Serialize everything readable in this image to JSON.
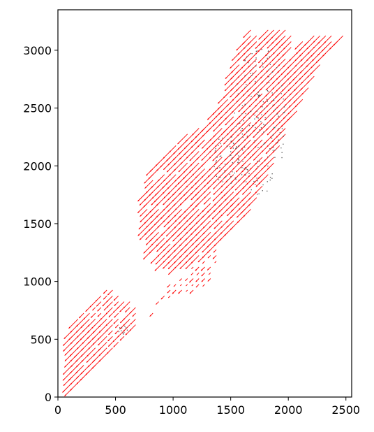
{
  "chart_data": {
    "type": "quiver",
    "title": "",
    "xlabel": "",
    "ylabel": "",
    "xlim": [
      0,
      2550
    ],
    "ylim": [
      0,
      3350
    ],
    "x_ticks": [
      0,
      500,
      1000,
      1500,
      2000,
      2500
    ],
    "y_ticks": [
      0,
      500,
      1000,
      1500,
      2000,
      2500,
      3000
    ],
    "grid": false,
    "legend": "none",
    "arrow_color": "#ff0000",
    "speck_color": "#555555",
    "arrow_direction_deg": 225,
    "region_polygons": [
      {
        "name": "lower-left-lobe",
        "points": [
          [
            100,
            40
          ],
          [
            700,
            600
          ],
          [
            700,
            800
          ],
          [
            520,
            920
          ],
          [
            400,
            940
          ],
          [
            200,
            740
          ],
          [
            100,
            560
          ]
        ]
      },
      {
        "name": "middle-band",
        "points": [
          [
            700,
            560
          ],
          [
            950,
            960
          ],
          [
            1400,
            1300
          ],
          [
            1350,
            1000
          ],
          [
            1150,
            900
          ],
          [
            900,
            820
          ]
        ]
      },
      {
        "name": "upper-main-body",
        "points": [
          [
            750,
            1600
          ],
          [
            800,
            2000
          ],
          [
            1050,
            2200
          ],
          [
            1150,
            2300
          ],
          [
            1300,
            2350
          ],
          [
            1500,
            2700
          ],
          [
            1550,
            2970
          ],
          [
            1700,
            3220
          ],
          [
            1950,
            3200
          ],
          [
            2100,
            3100
          ],
          [
            2300,
            3150
          ],
          [
            2480,
            3130
          ],
          [
            2300,
            2900
          ],
          [
            2150,
            2600
          ],
          [
            2000,
            2300
          ],
          [
            1850,
            1950
          ],
          [
            1700,
            1650
          ],
          [
            1500,
            1400
          ],
          [
            1300,
            1200
          ],
          [
            1000,
            1100
          ],
          [
            800,
            1250
          ]
        ]
      }
    ]
  }
}
